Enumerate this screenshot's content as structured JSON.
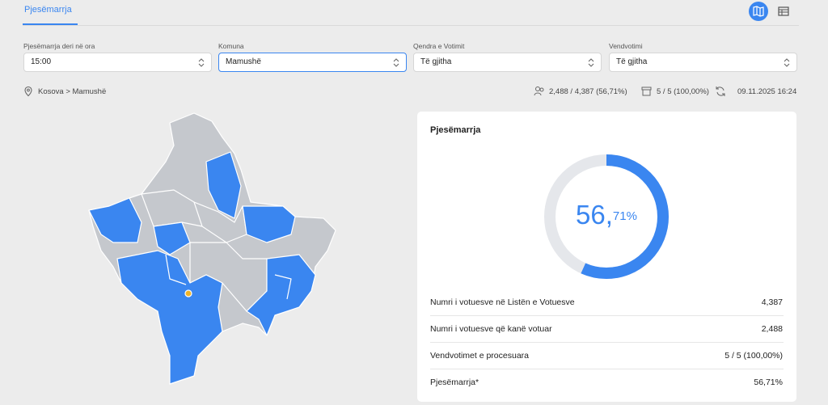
{
  "tab": "Pjesëmarrja",
  "filters": [
    {
      "label": "Pjesëmarrja deri në ora",
      "value": "15:00"
    },
    {
      "label": "Komuna",
      "value": "Mamushë"
    },
    {
      "label": "Qendra e Votimit",
      "value": "Të gjitha"
    },
    {
      "label": "Vendvotimi",
      "value": "Të gjitha"
    }
  ],
  "breadcrumb": "Kosova > Mamushë",
  "stats": {
    "voters": "2,488 / 4,387 (56,71%)",
    "stations": "5 / 5 (100,00%)",
    "updated": "09.11.2025 16:24"
  },
  "card": {
    "title": "Pjesëmarrja",
    "donut": {
      "value": 56.71,
      "integer_label": "56,",
      "decimal_label": "71%"
    },
    "rows": [
      {
        "label": "Numri i votuesve në Listën e Votuesve",
        "value": "4,387"
      },
      {
        "label": "Numri i votuesve që kanë votuar",
        "value": "2,488"
      },
      {
        "label": "Vendvotimet e procesuara",
        "value": "5 / 5 (100,00%)"
      },
      {
        "label": "Pjesëmarrja*",
        "value": "56,71%"
      }
    ]
  }
}
